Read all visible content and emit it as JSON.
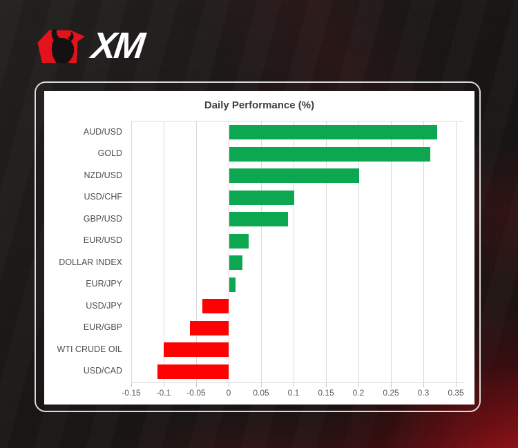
{
  "brand": {
    "name": "XM",
    "logo_icon": "xm-bull-icon",
    "logo_red": "#e2131d",
    "logo_dark": "#161111"
  },
  "chart_data": {
    "type": "bar",
    "orientation": "horizontal",
    "title": "Daily Performance (%)",
    "categories": [
      "AUD/USD",
      "GOLD",
      "NZD/USD",
      "USD/CHF",
      "GBP/USD",
      "EUR/USD",
      "DOLLAR INDEX",
      "EUR/JPY",
      "USD/JPY",
      "EUR/GBP",
      "WTI CRUDE OIL",
      "USD/CAD"
    ],
    "values": [
      0.32,
      0.31,
      0.2,
      0.1,
      0.09,
      0.03,
      0.02,
      0.01,
      -0.04,
      -0.06,
      -0.1,
      -0.11
    ],
    "xlim": [
      -0.15,
      0.35
    ],
    "xticks": [
      -0.15,
      -0.1,
      -0.05,
      0,
      0.05,
      0.1,
      0.15,
      0.2,
      0.25,
      0.3,
      0.35
    ],
    "xtick_labels": [
      "-0.15",
      "-0.1",
      "-0.05",
      "0",
      "0.05",
      "0.1",
      "0.15",
      "0.2",
      "0.25",
      "0.3",
      "0.35"
    ],
    "grid": true,
    "legend": false,
    "colors": {
      "positive": "#0CA750",
      "negative": "#FE0202",
      "gridline": "#D9D9D9",
      "tick_mark": "#C6C6C6",
      "title": "#3F3F3F",
      "category_label": "#4D4D4D",
      "tick_label": "#595959",
      "plot_background": "#FFFFFF"
    }
  }
}
